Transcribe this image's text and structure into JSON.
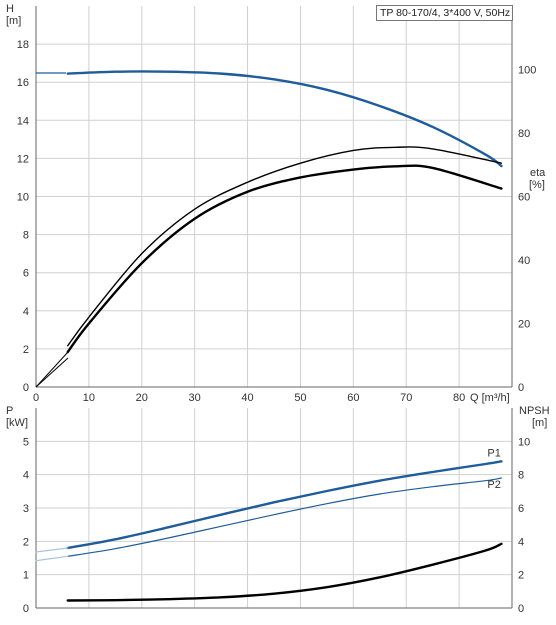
{
  "legend_box": "TP 80-170/4, 3*400 V, 50Hz",
  "chart_data": [
    {
      "type": "line",
      "ylabel_left": [
        "H",
        "[m]"
      ],
      "ylabel_right": [
        "eta",
        "[%]"
      ],
      "xlabel": "Q [m³/h]",
      "xlim": [
        0,
        90
      ],
      "ylim_left": [
        0,
        20
      ],
      "ylim_right": [
        0,
        120
      ],
      "xticks": [
        0,
        10,
        20,
        30,
        40,
        50,
        60,
        70,
        80
      ],
      "yticks_left": [
        0,
        2,
        4,
        6,
        8,
        10,
        12,
        14,
        16,
        18
      ],
      "yticks_right": [
        0,
        20,
        40,
        60,
        80,
        100
      ],
      "grid": true,
      "series": [
        {
          "axis": "left",
          "color": "#1f5c99",
          "x": [
            6,
            15,
            25,
            35,
            45,
            55,
            65,
            75,
            85,
            88
          ],
          "y": [
            16.45,
            16.55,
            16.55,
            16.45,
            16.15,
            15.6,
            14.75,
            13.65,
            12.2,
            11.6
          ]
        },
        {
          "axis": "right",
          "color": "#000000",
          "x": [
            6,
            10,
            20,
            30,
            40,
            50,
            60,
            68,
            75,
            88
          ],
          "y": [
            11,
            20,
            39,
            53,
            61.5,
            66,
            68.5,
            69.5,
            69,
            62.5
          ]
        },
        {
          "axis": "right",
          "color": "#000000",
          "x": [
            6,
            10,
            20,
            30,
            40,
            50,
            60,
            68,
            75,
            88
          ],
          "y": [
            13,
            22,
            42,
            56,
            64.5,
            70.5,
            74.5,
            75.5,
            75,
            70.5
          ]
        }
      ]
    },
    {
      "type": "line",
      "ylabel_left": [
        "P",
        "[kW]"
      ],
      "ylabel_right": [
        "NPSH",
        "[m]"
      ],
      "xlim": [
        0,
        90
      ],
      "ylim_left": [
        0,
        6
      ],
      "ylim_right": [
        0,
        12
      ],
      "xticks": [
        0,
        10,
        20,
        30,
        40,
        50,
        60,
        70,
        80
      ],
      "yticks_left": [
        0,
        1,
        2,
        3,
        4,
        5
      ],
      "yticks_right": [
        0,
        2,
        4,
        6,
        8,
        10
      ],
      "grid": true,
      "series": [
        {
          "name": "P1",
          "axis": "left",
          "color": "#1f5c99",
          "x": [
            6,
            15,
            25,
            35,
            45,
            55,
            65,
            75,
            85,
            88
          ],
          "y": [
            1.8,
            2.06,
            2.42,
            2.8,
            3.17,
            3.51,
            3.82,
            4.08,
            4.32,
            4.4
          ]
        },
        {
          "name": "P2",
          "axis": "left",
          "color": "#1f5c99",
          "x": [
            6,
            15,
            25,
            35,
            45,
            55,
            65,
            75,
            85,
            88
          ],
          "y": [
            1.55,
            1.78,
            2.1,
            2.45,
            2.8,
            3.13,
            3.42,
            3.64,
            3.82,
            3.9
          ]
        },
        {
          "axis": "left",
          "color": "#aac4de",
          "x": [
            0,
            6
          ],
          "y": [
            1.68,
            1.8
          ]
        },
        {
          "axis": "left",
          "color": "#aac4de",
          "x": [
            0,
            6
          ],
          "y": [
            1.42,
            1.55
          ]
        },
        {
          "axis": "right",
          "color": "#000000",
          "x": [
            6,
            15,
            25,
            35,
            45,
            55,
            65,
            75,
            85,
            88
          ],
          "y": [
            0.45,
            0.47,
            0.53,
            0.64,
            0.86,
            1.25,
            1.84,
            2.6,
            3.45,
            3.85
          ]
        }
      ]
    }
  ]
}
